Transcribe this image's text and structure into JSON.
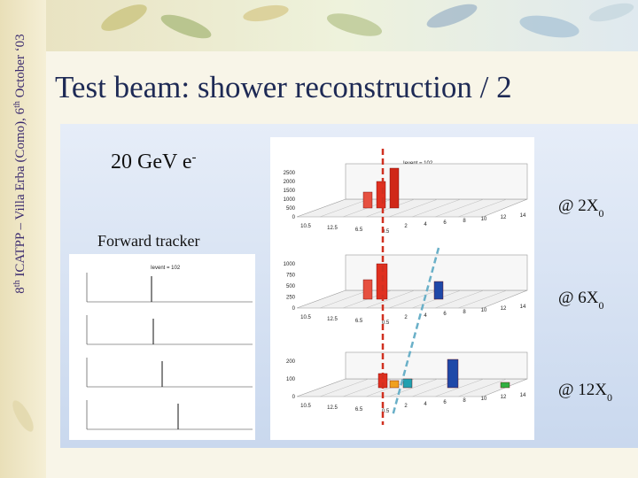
{
  "sidebar": {
    "parts": [
      "8",
      "th",
      " ICATPP – Villa Erba (Como), 6",
      "th",
      " October ‘03"
    ]
  },
  "title": "Test beam: shower reconstruction / 2",
  "beam": {
    "text": "20 GeV e",
    "sup": "-"
  },
  "tracker_label": "Forward tracker",
  "depth_labels": [
    {
      "prefix": "@ 2X",
      "sub": "0"
    },
    {
      "prefix": "@ 6X",
      "sub": "0"
    },
    {
      "prefix": "@ 12X",
      "sub": "0"
    }
  ],
  "shower_plot": {
    "event_label": "Ievent = 102",
    "panels": [
      {
        "y_ticks": [
          "2500",
          "2000",
          "1500",
          "1000",
          "500",
          "0"
        ],
        "x_ticks": [
          "10.5",
          "12.5",
          "6.5",
          "0.5",
          "2",
          "4",
          "6",
          "8",
          "10",
          "12",
          "14"
        ]
      },
      {
        "y_ticks": [
          "1000",
          "750",
          "500",
          "250",
          "0"
        ],
        "x_ticks": [
          "10.5",
          "12.5",
          "6.5",
          "0.5",
          "2",
          "4",
          "6",
          "8",
          "10",
          "12",
          "14"
        ]
      },
      {
        "y_ticks": [
          "200",
          "100",
          "0"
        ],
        "x_ticks": [
          "10.5",
          "12.5",
          "6.5",
          "0.5",
          "2",
          "4",
          "6",
          "8",
          "10",
          "12",
          "14"
        ]
      }
    ]
  },
  "tracker_plot": {
    "event_label": "Ievent = 102"
  }
}
